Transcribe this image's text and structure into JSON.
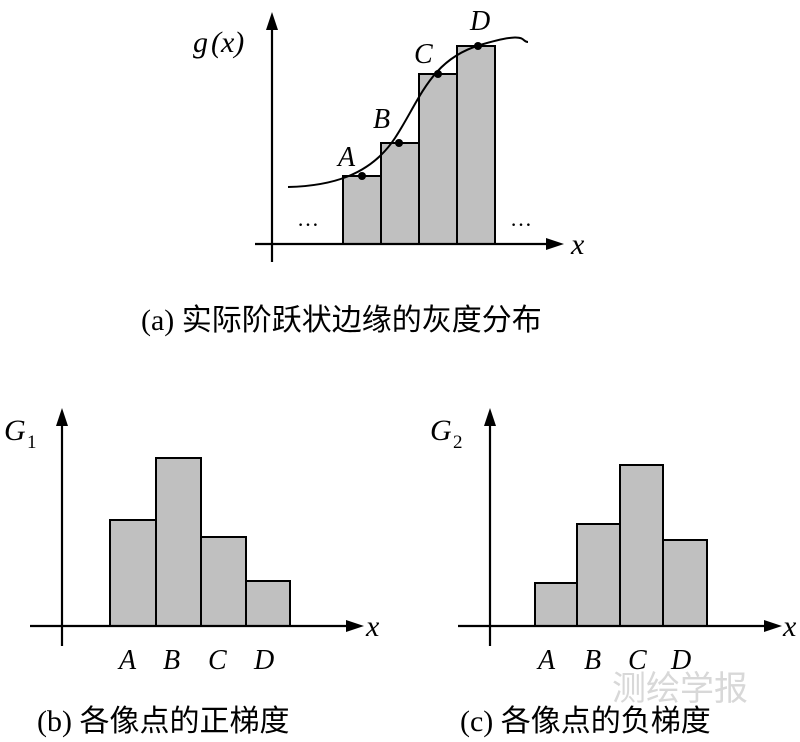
{
  "panel_a": {
    "y_label_g": "g",
    "y_label_paren": "(x)",
    "x_label": "x",
    "points": [
      "A",
      "B",
      "C",
      "D"
    ],
    "ellipsis_left": "…",
    "ellipsis_right": "…",
    "caption": "(a) 实际阶跃状边缘的灰度分布"
  },
  "panel_b": {
    "y_label": "G",
    "y_label_sub": "1",
    "x_label": "x",
    "categories": [
      "A",
      "B",
      "C",
      "D"
    ],
    "caption": "(b) 各像点的正梯度"
  },
  "panel_c": {
    "y_label": "G",
    "y_label_sub": "2",
    "x_label": "x",
    "categories": [
      "A",
      "B",
      "C",
      "D"
    ],
    "caption": "(c) 各像点的负梯度"
  },
  "watermark": "测绘学报",
  "colors": {
    "bar_fill": "#c0c0c0",
    "stroke": "#000000",
    "watermark": "#d8d8d8"
  }
}
